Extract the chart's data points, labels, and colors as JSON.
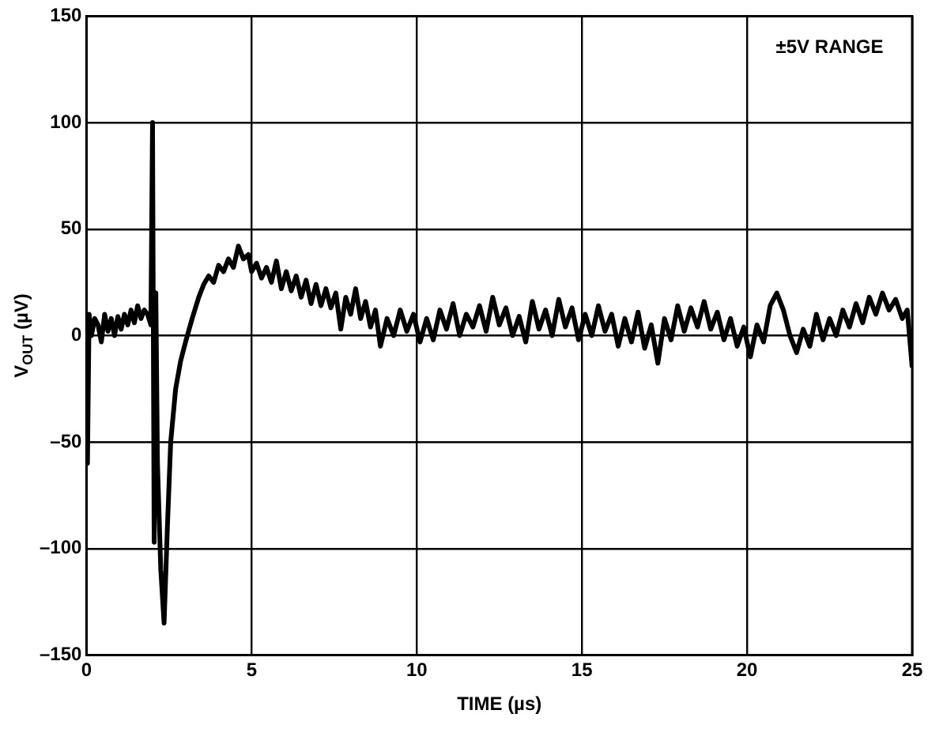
{
  "chart_data": {
    "type": "line",
    "xlabel": "TIME (µs)",
    "ylabel": "V$_{OUT}$ (µV)",
    "annotations": [
      "±5V RANGE"
    ],
    "xlim": [
      0,
      25
    ],
    "xticks": [
      0,
      5,
      10,
      15,
      20,
      25
    ],
    "ylim": [
      -150,
      150
    ],
    "yticks": [
      {
        "value": -150,
        "label": "–150"
      },
      {
        "value": -100,
        "label": "–100"
      },
      {
        "value": -50,
        "label": "–50"
      },
      0,
      50,
      100,
      150
    ],
    "grid": true,
    "marker": "none",
    "line_style": "solid",
    "series": [
      {
        "color": "#000000",
        "x": [
          0,
          0.03,
          0.08,
          0.15,
          0.25,
          0.35,
          0.45,
          0.55,
          0.65,
          0.75,
          0.85,
          0.95,
          1.05,
          1.15,
          1.25,
          1.35,
          1.45,
          1.55,
          1.65,
          1.75,
          1.85,
          1.95,
          2.0,
          2.05,
          2.1,
          2.15,
          2.25,
          2.35,
          2.45,
          2.55,
          2.7,
          2.85,
          3.0,
          3.2,
          3.4,
          3.55,
          3.7,
          3.85,
          4.0,
          4.15,
          4.3,
          4.45,
          4.6,
          4.75,
          4.9,
          5.0,
          5.15,
          5.3,
          5.45,
          5.6,
          5.75,
          5.9,
          6.05,
          6.2,
          6.35,
          6.5,
          6.65,
          6.8,
          6.95,
          7.1,
          7.25,
          7.4,
          7.55,
          7.7,
          7.85,
          8.0,
          8.15,
          8.3,
          8.45,
          8.6,
          8.75,
          8.9,
          9.1,
          9.3,
          9.5,
          9.7,
          9.9,
          10.1,
          10.3,
          10.5,
          10.7,
          10.9,
          11.1,
          11.3,
          11.5,
          11.7,
          11.9,
          12.1,
          12.3,
          12.5,
          12.7,
          12.9,
          13.1,
          13.3,
          13.5,
          13.7,
          13.9,
          14.1,
          14.3,
          14.5,
          14.7,
          14.9,
          15.1,
          15.3,
          15.5,
          15.7,
          15.9,
          16.1,
          16.3,
          16.5,
          16.7,
          16.9,
          17.1,
          17.3,
          17.5,
          17.7,
          17.9,
          18.1,
          18.3,
          18.5,
          18.7,
          18.9,
          19.1,
          19.3,
          19.5,
          19.7,
          19.9,
          20.1,
          20.3,
          20.5,
          20.7,
          20.9,
          21.1,
          21.3,
          21.5,
          21.7,
          21.9,
          22.1,
          22.3,
          22.5,
          22.7,
          22.9,
          23.1,
          23.3,
          23.5,
          23.7,
          23.9,
          24.1,
          24.3,
          24.5,
          24.7,
          24.85,
          25
        ],
        "values": [
          0,
          -60,
          10,
          0,
          8,
          5,
          -3,
          10,
          2,
          8,
          0,
          9,
          3,
          10,
          5,
          12,
          6,
          14,
          8,
          12,
          10,
          5,
          100,
          -97,
          20,
          -60,
          -110,
          -135,
          -90,
          -50,
          -25,
          -12,
          -3,
          8,
          18,
          24,
          28,
          25,
          33,
          30,
          36,
          32,
          42,
          36,
          38,
          30,
          34,
          27,
          32,
          25,
          35,
          22,
          30,
          21,
          28,
          18,
          26,
          15,
          24,
          14,
          22,
          13,
          20,
          3,
          18,
          10,
          22,
          8,
          16,
          4,
          12,
          -5,
          8,
          0,
          12,
          2,
          10,
          -3,
          8,
          -2,
          12,
          3,
          15,
          0,
          10,
          4,
          14,
          2,
          18,
          5,
          13,
          0,
          9,
          -3,
          16,
          3,
          12,
          0,
          17,
          4,
          13,
          -2,
          10,
          0,
          14,
          2,
          10,
          -5,
          8,
          -3,
          11,
          -6,
          5,
          -13,
          8,
          -2,
          14,
          2,
          13,
          4,
          16,
          3,
          11,
          -2,
          8,
          -5,
          4,
          -10,
          5,
          -3,
          14,
          20,
          12,
          0,
          -8,
          3,
          -5,
          10,
          -2,
          8,
          0,
          12,
          4,
          15,
          6,
          18,
          10,
          20,
          12,
          17,
          8,
          12,
          -15
        ]
      }
    ]
  }
}
